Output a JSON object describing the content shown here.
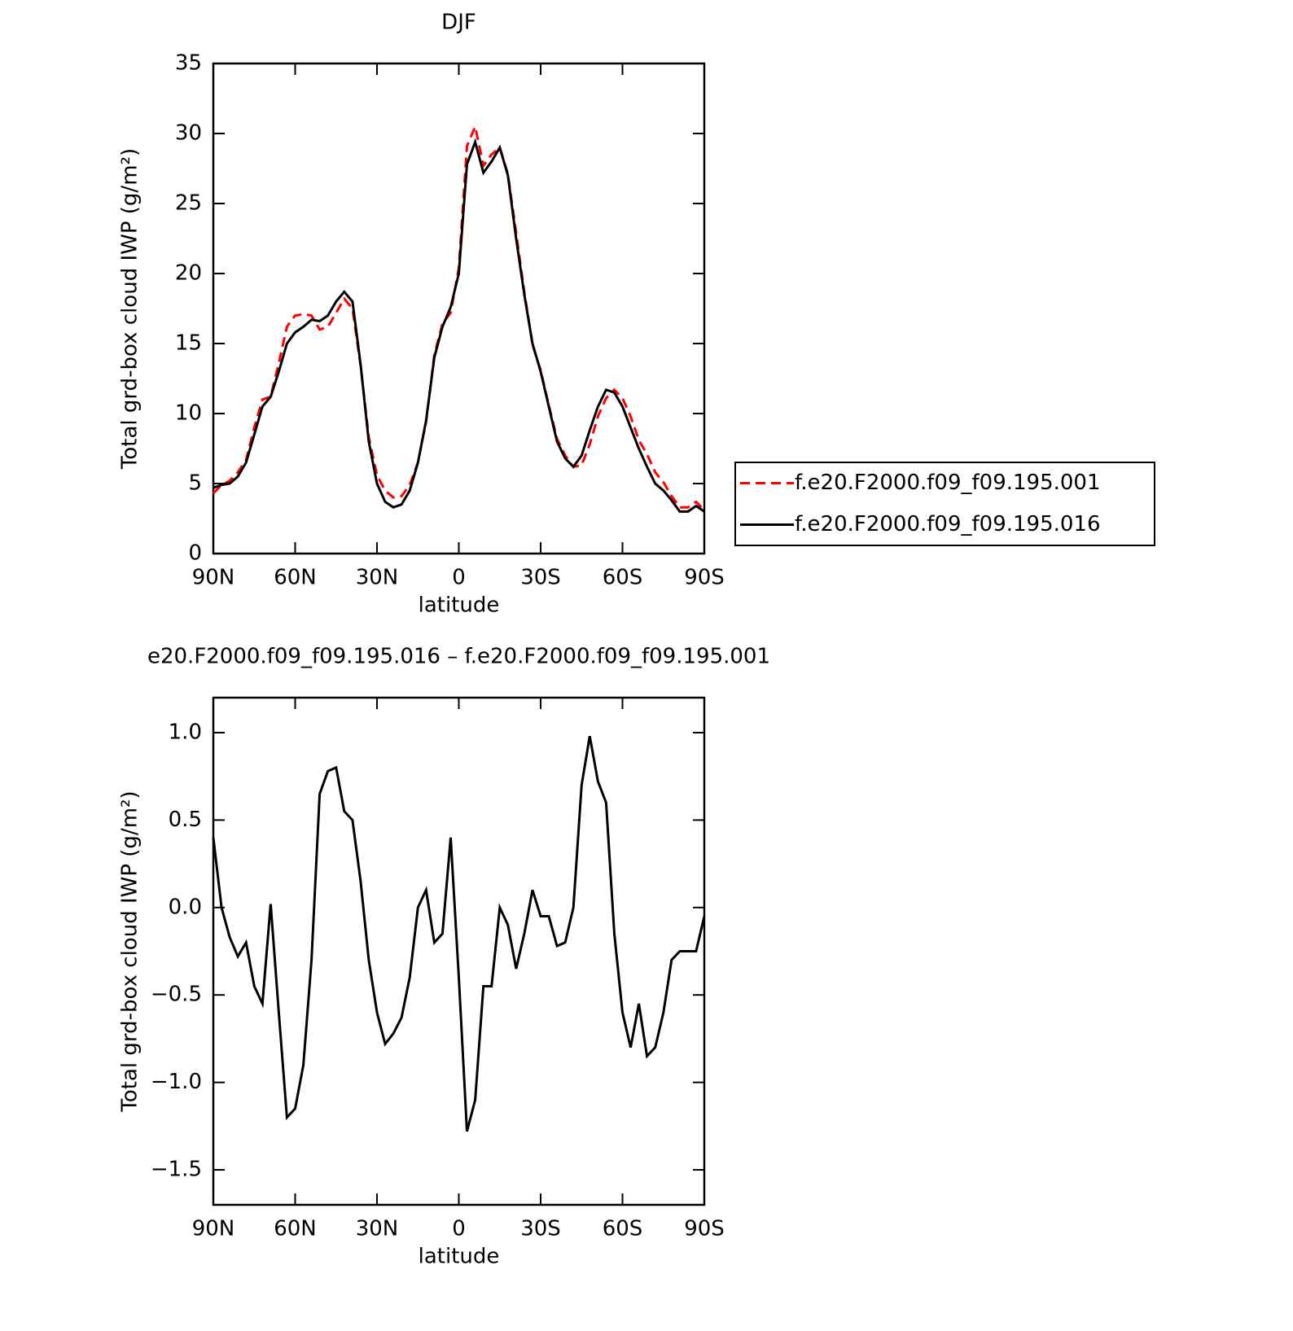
{
  "chart_data": [
    {
      "type": "line",
      "title": "DJF",
      "xlabel": "latitude",
      "ylabel": "Total grd-box cloud IWP (g/m²)",
      "x": [
        90,
        87,
        84,
        81,
        78,
        75,
        72,
        69,
        66,
        63,
        60,
        57,
        54,
        51,
        48,
        45,
        42,
        39,
        36,
        33,
        30,
        27,
        24,
        21,
        18,
        15,
        12,
        9,
        6,
        3,
        0,
        -3,
        -6,
        -9,
        -12,
        -15,
        -18,
        -21,
        -24,
        -27,
        -30,
        -33,
        -36,
        -39,
        -42,
        -45,
        -48,
        -51,
        -54,
        -57,
        -60,
        -63,
        -66,
        -69,
        -72,
        -75,
        -78,
        -81,
        -84,
        -87,
        -90
      ],
      "xlim": [
        90,
        -90
      ],
      "xticks": [
        {
          "value": 90,
          "label": "90N"
        },
        {
          "value": 60,
          "label": "60N"
        },
        {
          "value": 30,
          "label": "30N"
        },
        0,
        {
          "value": -30,
          "label": "30S"
        },
        {
          "value": -60,
          "label": "60S"
        },
        {
          "value": -90,
          "label": "90S"
        }
      ],
      "ylim": [
        0,
        35
      ],
      "yticks": [
        0,
        5,
        10,
        15,
        20,
        25,
        30,
        35
      ],
      "legend": "right",
      "series": [
        {
          "name": "f.e20.F2000.f09_f09.195.001",
          "color": "#ff0000",
          "style": "dashed",
          "values": [
            4.3,
            4.9,
            5.2,
            5.8,
            6.7,
            9.0,
            11.0,
            11.2,
            13.6,
            16.2,
            17.0,
            17.1,
            17.0,
            16.0,
            16.2,
            17.2,
            18.2,
            17.5,
            13.4,
            8.3,
            5.6,
            4.5,
            4.0,
            4.1,
            4.9,
            6.5,
            9.4,
            14.2,
            16.4,
            17.2,
            20.4,
            29.1,
            30.5,
            27.7,
            28.5,
            29.0,
            27.1,
            22.9,
            18.7,
            14.9,
            13.1,
            10.6,
            8.2,
            7.0,
            6.2,
            6.3,
            7.8,
            9.8,
            11.1,
            11.7,
            11.1,
            9.8,
            8.1,
            7.1,
            5.8,
            5.1,
            4.1,
            3.3,
            3.3,
            3.7,
            3.1
          ]
        },
        {
          "name": "f.e20.F2000.f09_f09.195.016",
          "color": "#000000",
          "style": "solid",
          "values": [
            4.7,
            4.9,
            5.0,
            5.5,
            6.5,
            8.5,
            10.5,
            11.2,
            13.0,
            15.0,
            15.8,
            16.2,
            16.7,
            16.6,
            17.0,
            18.0,
            18.7,
            18.0,
            13.5,
            8.0,
            5.0,
            3.7,
            3.3,
            3.5,
            4.5,
            6.5,
            9.5,
            14.0,
            16.2,
            17.6,
            20.0,
            27.8,
            29.4,
            27.2,
            28.0,
            29.0,
            27.0,
            22.5,
            18.5,
            15.0,
            13.0,
            10.5,
            8.0,
            6.8,
            6.2,
            7.0,
            8.8,
            10.5,
            11.7,
            11.5,
            10.5,
            9.0,
            7.5,
            6.2,
            5.0,
            4.5,
            3.8,
            3.0,
            3.0,
            3.4,
            3.0
          ]
        }
      ]
    },
    {
      "type": "line",
      "title": "e20.F2000.f09_f09.195.016 – f.e20.F2000.f09_f09.195.001",
      "xlabel": "latitude",
      "ylabel": "Total grd-box cloud IWP (g/m²)",
      "x": [
        90,
        87,
        84,
        81,
        78,
        75,
        72,
        69,
        66,
        63,
        60,
        57,
        54,
        51,
        48,
        45,
        42,
        39,
        36,
        33,
        30,
        27,
        24,
        21,
        18,
        15,
        12,
        9,
        6,
        3,
        0,
        -3,
        -6,
        -9,
        -12,
        -15,
        -18,
        -21,
        -24,
        -27,
        -30,
        -33,
        -36,
        -39,
        -42,
        -45,
        -48,
        -51,
        -54,
        -57,
        -60,
        -63,
        -66,
        -69,
        -72,
        -75,
        -78,
        -81,
        -84,
        -87,
        -90
      ],
      "xlim": [
        90,
        -90
      ],
      "xticks": [
        {
          "value": 90,
          "label": "90N"
        },
        {
          "value": 60,
          "label": "60N"
        },
        {
          "value": 30,
          "label": "30N"
        },
        0,
        {
          "value": -30,
          "label": "30S"
        },
        {
          "value": -60,
          "label": "60S"
        },
        {
          "value": -90,
          "label": "90S"
        }
      ],
      "ylim": [
        -1.7,
        1.2
      ],
      "yticks": [
        {
          "value": -1.5,
          "label": "−1.5"
        },
        {
          "value": -1,
          "label": "−1.0"
        },
        {
          "value": -0.5,
          "label": "−0.5"
        },
        {
          "value": 0,
          "label": "0.0"
        },
        0.5,
        {
          "value": 1,
          "label": "1.0"
        }
      ],
      "series": [
        {
          "color": "#000000",
          "style": "solid",
          "values": [
            0.4,
            0.0,
            -0.17,
            -0.28,
            -0.2,
            -0.45,
            -0.55,
            0.02,
            -0.6,
            -1.2,
            -1.15,
            -0.9,
            -0.3,
            0.65,
            0.78,
            0.8,
            0.55,
            0.5,
            0.15,
            -0.3,
            -0.6,
            -0.78,
            -0.72,
            -0.63,
            -0.4,
            0.0,
            0.1,
            -0.2,
            -0.15,
            0.4,
            -0.4,
            -1.28,
            -1.1,
            -0.45,
            -0.45,
            0.0,
            -0.1,
            -0.35,
            -0.15,
            0.1,
            -0.05,
            -0.05,
            -0.22,
            -0.2,
            0.0,
            0.7,
            0.98,
            0.72,
            0.6,
            -0.15,
            -0.6,
            -0.8,
            -0.55,
            -0.85,
            -0.8,
            -0.6,
            -0.3,
            -0.25,
            -0.25,
            -0.25,
            -0.05
          ]
        }
      ]
    }
  ]
}
